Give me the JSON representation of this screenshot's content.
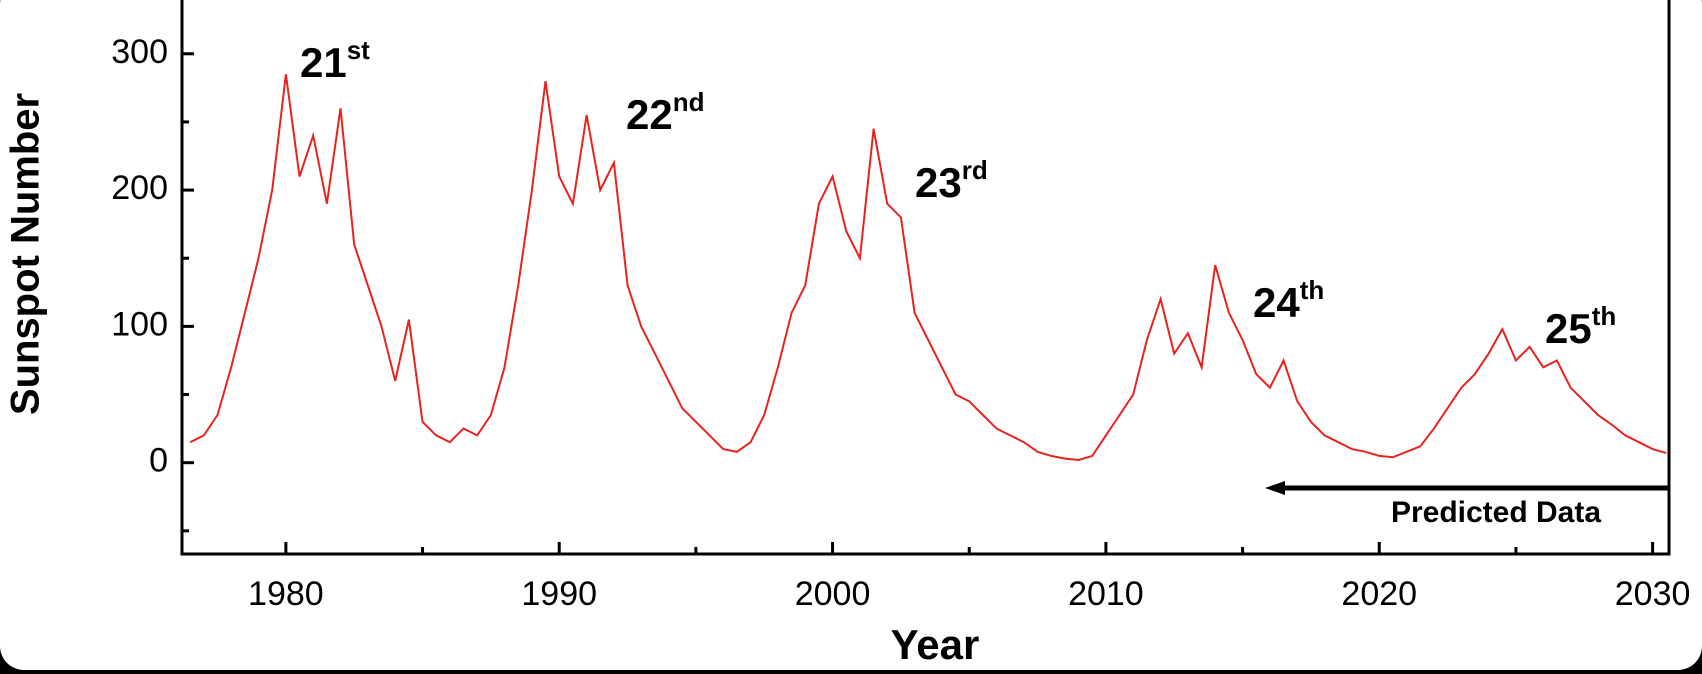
{
  "chart_data": {
    "type": "line",
    "xlabel": "Year",
    "ylabel": "Sunspot Number",
    "x": [
      1976.5,
      1977,
      1977.5,
      1978,
      1978.5,
      1979,
      1979.5,
      1980,
      1980.5,
      1981,
      1981.5,
      1982,
      1982.5,
      1983,
      1983.5,
      1984,
      1984.5,
      1985,
      1985.5,
      1986,
      1986.5,
      1987,
      1987.5,
      1988,
      1988.5,
      1989,
      1989.5,
      1990,
      1990.5,
      1991,
      1991.5,
      1992,
      1992.5,
      1993,
      1993.5,
      1994,
      1994.5,
      1995,
      1995.5,
      1996,
      1996.5,
      1997,
      1997.5,
      1998,
      1998.5,
      1999,
      1999.5,
      2000,
      2000.5,
      2001,
      2001.5,
      2002,
      2002.5,
      2003,
      2003.5,
      2004,
      2004.5,
      2005,
      2005.5,
      2006,
      2006.5,
      2007,
      2007.5,
      2008,
      2008.5,
      2009,
      2009.5,
      2010,
      2010.5,
      2011,
      2011.5,
      2012,
      2012.5,
      2013,
      2013.5,
      2014,
      2014.5,
      2015,
      2015.5,
      2016,
      2016.5,
      2017,
      2017.5,
      2018,
      2018.5,
      2019,
      2019.5,
      2020,
      2020.5,
      2021,
      2021.5,
      2022,
      2022.5,
      2023,
      2023.5,
      2024,
      2024.5,
      2025,
      2025.5,
      2026,
      2026.5,
      2027,
      2027.5,
      2028,
      2028.5,
      2029,
      2029.5,
      2030,
      2030.5
    ],
    "series": [
      {
        "color": "#e8231f",
        "values": [
          15,
          20,
          35,
          70,
          110,
          150,
          200,
          285,
          210,
          240,
          190,
          260,
          160,
          130,
          100,
          60,
          105,
          30,
          20,
          15,
          25,
          20,
          35,
          70,
          130,
          200,
          280,
          210,
          190,
          255,
          200,
          220,
          130,
          100,
          80,
          60,
          40,
          30,
          20,
          10,
          8,
          15,
          35,
          70,
          110,
          130,
          190,
          210,
          170,
          150,
          245,
          190,
          180,
          110,
          90,
          70,
          50,
          45,
          35,
          25,
          20,
          15,
          8,
          5,
          3,
          2,
          5,
          20,
          35,
          50,
          90,
          120,
          80,
          95,
          70,
          145,
          110,
          90,
          65,
          55,
          75,
          45,
          30,
          20,
          15,
          10,
          8,
          5,
          4,
          8,
          12,
          25,
          40,
          55,
          65,
          80,
          98,
          75,
          85,
          70,
          75,
          55,
          45,
          35,
          28,
          20,
          15,
          10,
          7
        ]
      }
    ],
    "xlim": [
      1976.2,
      2030.6
    ],
    "xticks": [
      1980,
      1990,
      2000,
      2010,
      2020,
      2030
    ],
    "xminorticks": [
      1985,
      1995,
      2005,
      2015,
      2025
    ],
    "ylim": [
      -67,
      338
    ],
    "yticks": [
      0,
      100,
      200,
      300
    ],
    "yminorticks": [
      -50,
      50,
      150,
      250
    ],
    "annotations": [
      {
        "text": "21",
        "sup": "st"
      },
      {
        "text": "22",
        "sup": "nd"
      },
      {
        "text": "23",
        "sup": "rd"
      },
      {
        "text": "24",
        "sup": "th"
      },
      {
        "text": "25",
        "sup": "th"
      }
    ],
    "range_label": "Predicted Data"
  }
}
